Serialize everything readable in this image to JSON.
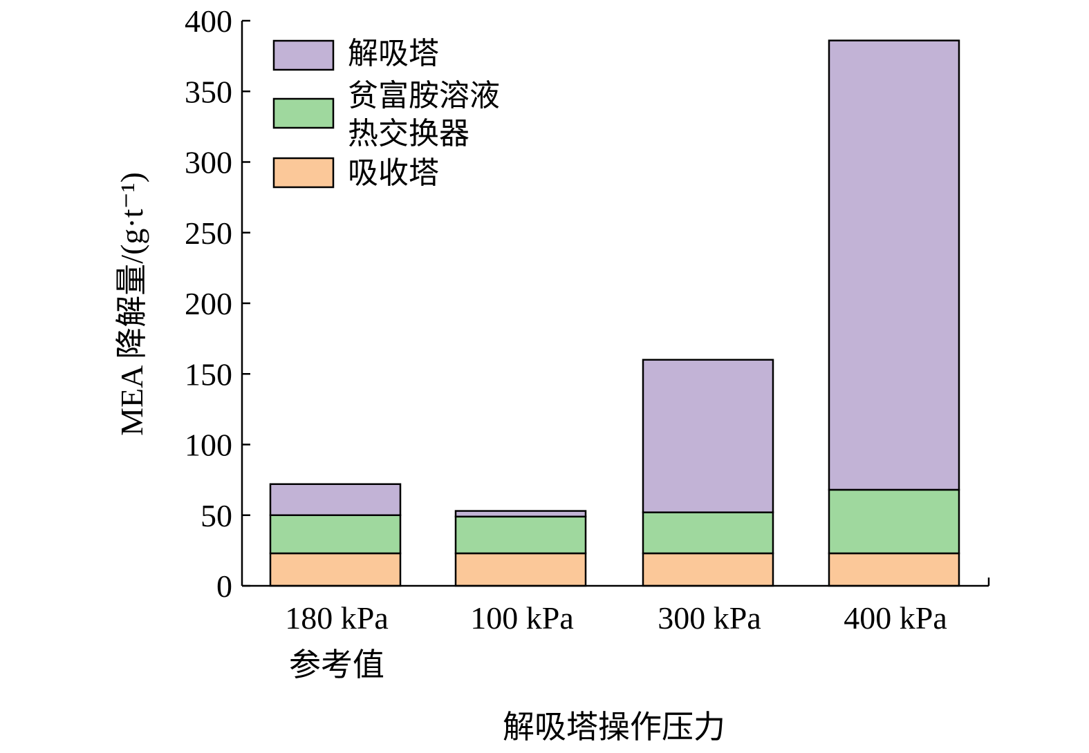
{
  "chart_data": {
    "type": "bar",
    "stacked": true,
    "categories": [
      [
        "180 kPa",
        "参考值"
      ],
      [
        "100 kPa"
      ],
      [
        "300 kPa"
      ],
      [
        "400 kPa"
      ]
    ],
    "series": [
      {
        "name": "吸收塔",
        "color": "#fbc899",
        "values": [
          23,
          23,
          23,
          23
        ]
      },
      {
        "name": "贫富胺溶液热交换器",
        "legend_lines": [
          "贫富胺溶液",
          "热交换器"
        ],
        "color": "#9fd89e",
        "values": [
          27,
          26,
          29,
          45
        ]
      },
      {
        "name": "解吸塔",
        "color": "#c2b3d6",
        "values": [
          22,
          4,
          108,
          318
        ]
      }
    ],
    "legend_order": [
      2,
      1,
      0
    ],
    "title": "",
    "xlabel": "解吸塔操作压力",
    "ylabel": "MEA 降解量/(g·t⁻¹)",
    "ylim": [
      0,
      400
    ],
    "yticks": [
      0,
      50,
      100,
      150,
      200,
      250,
      300,
      350,
      400
    ],
    "grid": false,
    "legend_position": "top-left"
  }
}
